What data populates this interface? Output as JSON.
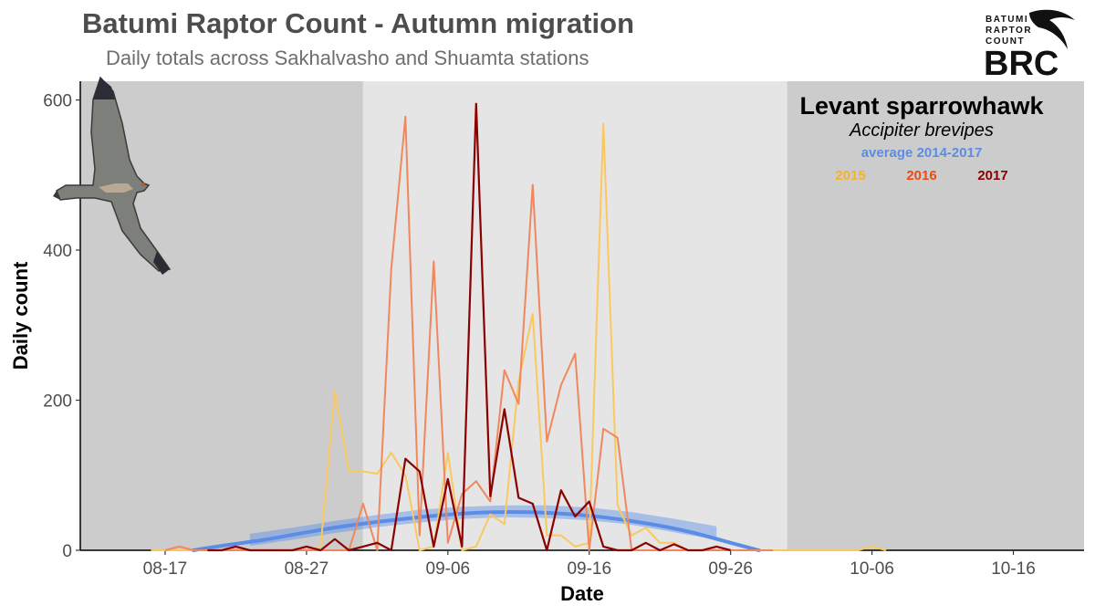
{
  "title": "Batumi Raptor Count - Autumn migration",
  "subtitle": "Daily totals across Sakhalvasho and Shuamta stations",
  "species": "Levant sparrowhawk",
  "latin": "Accipiter brevipes",
  "logo": {
    "line1": "BATUMI",
    "line2": "RAPTOR",
    "line3": "COUNT",
    "mark": "BRC"
  },
  "bird_icon": "flying-sparrowhawk-photo",
  "colors": {
    "panel_outer": "#cccccc",
    "panel_inner": "#e5e5e5",
    "avg": "#5b8de6",
    "y2015": "#f9c85e",
    "y2016": "#f0885e",
    "y2017": "#8b0000",
    "legend2015": "#f5b324",
    "legend2016": "#ee4a12",
    "legend2017": "#8b0000"
  },
  "chart_data": {
    "type": "line",
    "title": "Batumi Raptor Count - Autumn migration",
    "subtitle": "Daily totals across Sakhalvasho and Shuamta stations",
    "xlabel": "Date",
    "ylabel": "Daily count",
    "x_type": "date",
    "xlim": [
      "2017-08-11",
      "2017-10-21"
    ],
    "ylim": [
      0,
      625
    ],
    "x_ticks": [
      {
        "date": "2017-08-17",
        "label": "08-17"
      },
      {
        "date": "2017-08-27",
        "label": "08-27"
      },
      {
        "date": "2017-09-06",
        "label": "09-06"
      },
      {
        "date": "2017-09-16",
        "label": "09-16"
      },
      {
        "date": "2017-09-26",
        "label": "09-26"
      },
      {
        "date": "2017-10-06",
        "label": "10-06"
      },
      {
        "date": "2017-10-16",
        "label": "10-16"
      }
    ],
    "y_ticks": [
      0,
      200,
      400,
      600
    ],
    "shaded_periods": [
      {
        "from": "2017-08-11",
        "to": "2017-08-31",
        "shade": "outer"
      },
      {
        "from": "2017-08-31",
        "to": "2017-09-30",
        "shade": "inner"
      },
      {
        "from": "2017-09-30",
        "to": "2017-10-21",
        "shade": "outer"
      }
    ],
    "legend": [
      "average 2014-2017",
      "2015",
      "2016",
      "2017"
    ],
    "legend_position": "top-right",
    "grid": false,
    "series": [
      {
        "name": "2015",
        "points": [
          [
            "2017-08-16",
            0
          ],
          [
            "2017-08-17",
            0
          ],
          [
            "2017-08-18",
            0
          ],
          [
            "2017-08-19",
            0
          ],
          [
            "2017-08-20",
            0
          ],
          [
            "2017-08-21",
            0
          ],
          [
            "2017-08-22",
            0
          ],
          [
            "2017-08-23",
            0
          ],
          [
            "2017-08-24",
            0
          ],
          [
            "2017-08-25",
            0
          ],
          [
            "2017-08-26",
            0
          ],
          [
            "2017-08-27",
            0
          ],
          [
            "2017-08-28",
            5
          ],
          [
            "2017-08-29",
            212
          ],
          [
            "2017-08-30",
            105
          ],
          [
            "2017-08-31",
            105
          ],
          [
            "2017-09-01",
            102
          ],
          [
            "2017-09-02",
            130
          ],
          [
            "2017-09-03",
            100
          ],
          [
            "2017-09-04",
            0
          ],
          [
            "2017-09-05",
            5
          ],
          [
            "2017-09-06",
            130
          ],
          [
            "2017-09-07",
            0
          ],
          [
            "2017-09-08",
            5
          ],
          [
            "2017-09-09",
            48
          ],
          [
            "2017-09-10",
            35
          ],
          [
            "2017-09-11",
            225
          ],
          [
            "2017-09-12",
            315
          ],
          [
            "2017-09-13",
            20
          ],
          [
            "2017-09-14",
            20
          ],
          [
            "2017-09-15",
            5
          ],
          [
            "2017-09-16",
            10
          ],
          [
            "2017-09-17",
            568
          ],
          [
            "2017-09-18",
            60
          ],
          [
            "2017-09-19",
            20
          ],
          [
            "2017-09-20",
            30
          ],
          [
            "2017-09-21",
            10
          ],
          [
            "2017-09-22",
            10
          ],
          [
            "2017-09-23",
            0
          ],
          [
            "2017-09-24",
            0
          ],
          [
            "2017-09-25",
            0
          ],
          [
            "2017-09-26",
            0
          ],
          [
            "2017-09-27",
            0
          ],
          [
            "2017-09-28",
            0
          ],
          [
            "2017-09-29",
            0
          ],
          [
            "2017-09-30",
            0
          ],
          [
            "2017-10-01",
            0
          ],
          [
            "2017-10-02",
            0
          ],
          [
            "2017-10-03",
            0
          ],
          [
            "2017-10-04",
            0
          ],
          [
            "2017-10-05",
            0
          ],
          [
            "2017-10-06",
            5
          ],
          [
            "2017-10-07",
            0
          ]
        ]
      },
      {
        "name": "2016",
        "points": [
          [
            "2017-08-17",
            0
          ],
          [
            "2017-08-18",
            5
          ],
          [
            "2017-08-19",
            0
          ],
          [
            "2017-08-20",
            0
          ],
          [
            "2017-08-21",
            0
          ],
          [
            "2017-08-22",
            0
          ],
          [
            "2017-08-23",
            0
          ],
          [
            "2017-08-24",
            0
          ],
          [
            "2017-08-25",
            0
          ],
          [
            "2017-08-26",
            0
          ],
          [
            "2017-08-27",
            0
          ],
          [
            "2017-08-28",
            0
          ],
          [
            "2017-08-29",
            0
          ],
          [
            "2017-08-30",
            0
          ],
          [
            "2017-08-31",
            62
          ],
          [
            "2017-09-01",
            0
          ],
          [
            "2017-09-02",
            375
          ],
          [
            "2017-09-03",
            578
          ],
          [
            "2017-09-04",
            20
          ],
          [
            "2017-09-05",
            385
          ],
          [
            "2017-09-06",
            10
          ],
          [
            "2017-09-07",
            75
          ],
          [
            "2017-09-08",
            92
          ],
          [
            "2017-09-09",
            65
          ],
          [
            "2017-09-10",
            240
          ],
          [
            "2017-09-11",
            195
          ],
          [
            "2017-09-12",
            487
          ],
          [
            "2017-09-13",
            145
          ],
          [
            "2017-09-14",
            220
          ],
          [
            "2017-09-15",
            262
          ],
          [
            "2017-09-16",
            0
          ],
          [
            "2017-09-17",
            162
          ],
          [
            "2017-09-18",
            150
          ],
          [
            "2017-09-19",
            0
          ],
          [
            "2017-09-20",
            0
          ],
          [
            "2017-09-21",
            0
          ],
          [
            "2017-09-22",
            0
          ],
          [
            "2017-09-23",
            0
          ],
          [
            "2017-09-24",
            0
          ],
          [
            "2017-09-25",
            0
          ],
          [
            "2017-09-26",
            0
          ],
          [
            "2017-09-27",
            0
          ],
          [
            "2017-09-28",
            0
          ],
          [
            "2017-09-29",
            0
          ]
        ]
      },
      {
        "name": "2017",
        "points": [
          [
            "2017-08-20",
            0
          ],
          [
            "2017-08-21",
            0
          ],
          [
            "2017-08-22",
            5
          ],
          [
            "2017-08-23",
            0
          ],
          [
            "2017-08-24",
            0
          ],
          [
            "2017-08-25",
            0
          ],
          [
            "2017-08-26",
            0
          ],
          [
            "2017-08-27",
            5
          ],
          [
            "2017-08-28",
            0
          ],
          [
            "2017-08-29",
            15
          ],
          [
            "2017-08-30",
            0
          ],
          [
            "2017-08-31",
            5
          ],
          [
            "2017-09-01",
            10
          ],
          [
            "2017-09-02",
            0
          ],
          [
            "2017-09-03",
            122
          ],
          [
            "2017-09-04",
            105
          ],
          [
            "2017-09-05",
            5
          ],
          [
            "2017-09-06",
            95
          ],
          [
            "2017-09-07",
            5
          ],
          [
            "2017-09-08",
            595
          ],
          [
            "2017-09-09",
            72
          ],
          [
            "2017-09-10",
            188
          ],
          [
            "2017-09-11",
            70
          ],
          [
            "2017-09-12",
            62
          ],
          [
            "2017-09-13",
            0
          ],
          [
            "2017-09-14",
            80
          ],
          [
            "2017-09-15",
            45
          ],
          [
            "2017-09-16",
            65
          ],
          [
            "2017-09-17",
            5
          ],
          [
            "2017-09-18",
            0
          ],
          [
            "2017-09-19",
            0
          ],
          [
            "2017-09-20",
            10
          ],
          [
            "2017-09-21",
            0
          ],
          [
            "2017-09-22",
            8
          ],
          [
            "2017-09-23",
            0
          ],
          [
            "2017-09-24",
            0
          ],
          [
            "2017-09-25",
            5
          ],
          [
            "2017-09-26",
            0
          ]
        ]
      },
      {
        "name": "average 2014-2017",
        "style": "smooth",
        "points": [
          [
            "2017-08-19",
            0
          ],
          [
            "2017-08-21",
            6
          ],
          [
            "2017-08-24",
            14
          ],
          [
            "2017-08-27",
            24
          ],
          [
            "2017-08-30",
            33
          ],
          [
            "2017-09-02",
            40
          ],
          [
            "2017-09-05",
            46
          ],
          [
            "2017-09-08",
            50
          ],
          [
            "2017-09-11",
            51
          ],
          [
            "2017-09-14",
            49
          ],
          [
            "2017-09-17",
            44
          ],
          [
            "2017-09-20",
            36
          ],
          [
            "2017-09-23",
            25
          ],
          [
            "2017-09-26",
            10
          ],
          [
            "2017-09-28",
            0
          ]
        ],
        "ribbon": {
          "from": "2017-08-23",
          "to": "2017-09-25",
          "lower": [
            6,
            14,
            23,
            31,
            37,
            42,
            44,
            43,
            40,
            34,
            24,
            14
          ],
          "upper": [
            22,
            30,
            39,
            47,
            54,
            58,
            60,
            60,
            57,
            51,
            42,
            32
          ]
        }
      }
    ]
  }
}
